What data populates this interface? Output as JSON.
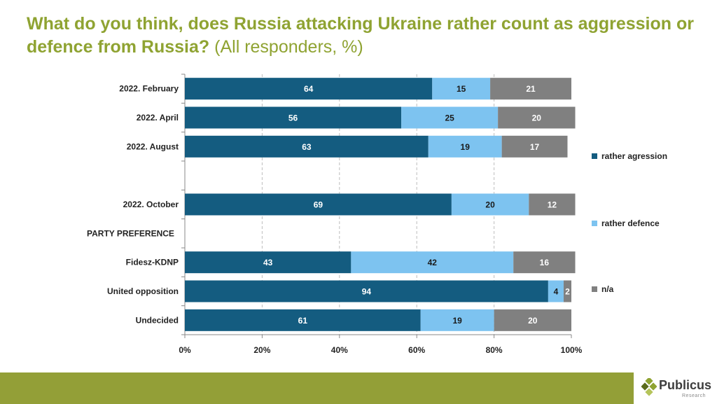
{
  "title": {
    "main": "What do you think, does Russia attacking Ukraine rather count as aggression or defence from Russia?",
    "subtitle": "(All responders, %)"
  },
  "chart_data": {
    "type": "bar",
    "orientation": "horizontal-stacked-100",
    "categories": [
      "2022. February",
      "2022. April",
      "2022. August",
      "",
      "2022. October",
      "PARTY PREFERENCE",
      "Fidesz-KDNP",
      "United opposition",
      "Undecided"
    ],
    "series": [
      {
        "name": "rather agression",
        "color": "#145c80",
        "values": [
          64,
          56,
          63,
          null,
          69,
          null,
          43,
          94,
          61
        ]
      },
      {
        "name": "rather defence",
        "color": "#7dc3f0",
        "values": [
          15,
          25,
          19,
          null,
          20,
          null,
          42,
          4,
          19
        ]
      },
      {
        "name": "n/a",
        "color": "#808080",
        "values": [
          21,
          20,
          17,
          null,
          12,
          null,
          16,
          2,
          20
        ]
      }
    ],
    "xlim": [
      0,
      100
    ],
    "x_ticks": [
      "0%",
      "20%",
      "40%",
      "60%",
      "80%",
      "100%"
    ],
    "grid": "vertical dashed",
    "legend": "right"
  },
  "branding": {
    "logo_text": "Publicus",
    "logo_sub": "Research"
  }
}
